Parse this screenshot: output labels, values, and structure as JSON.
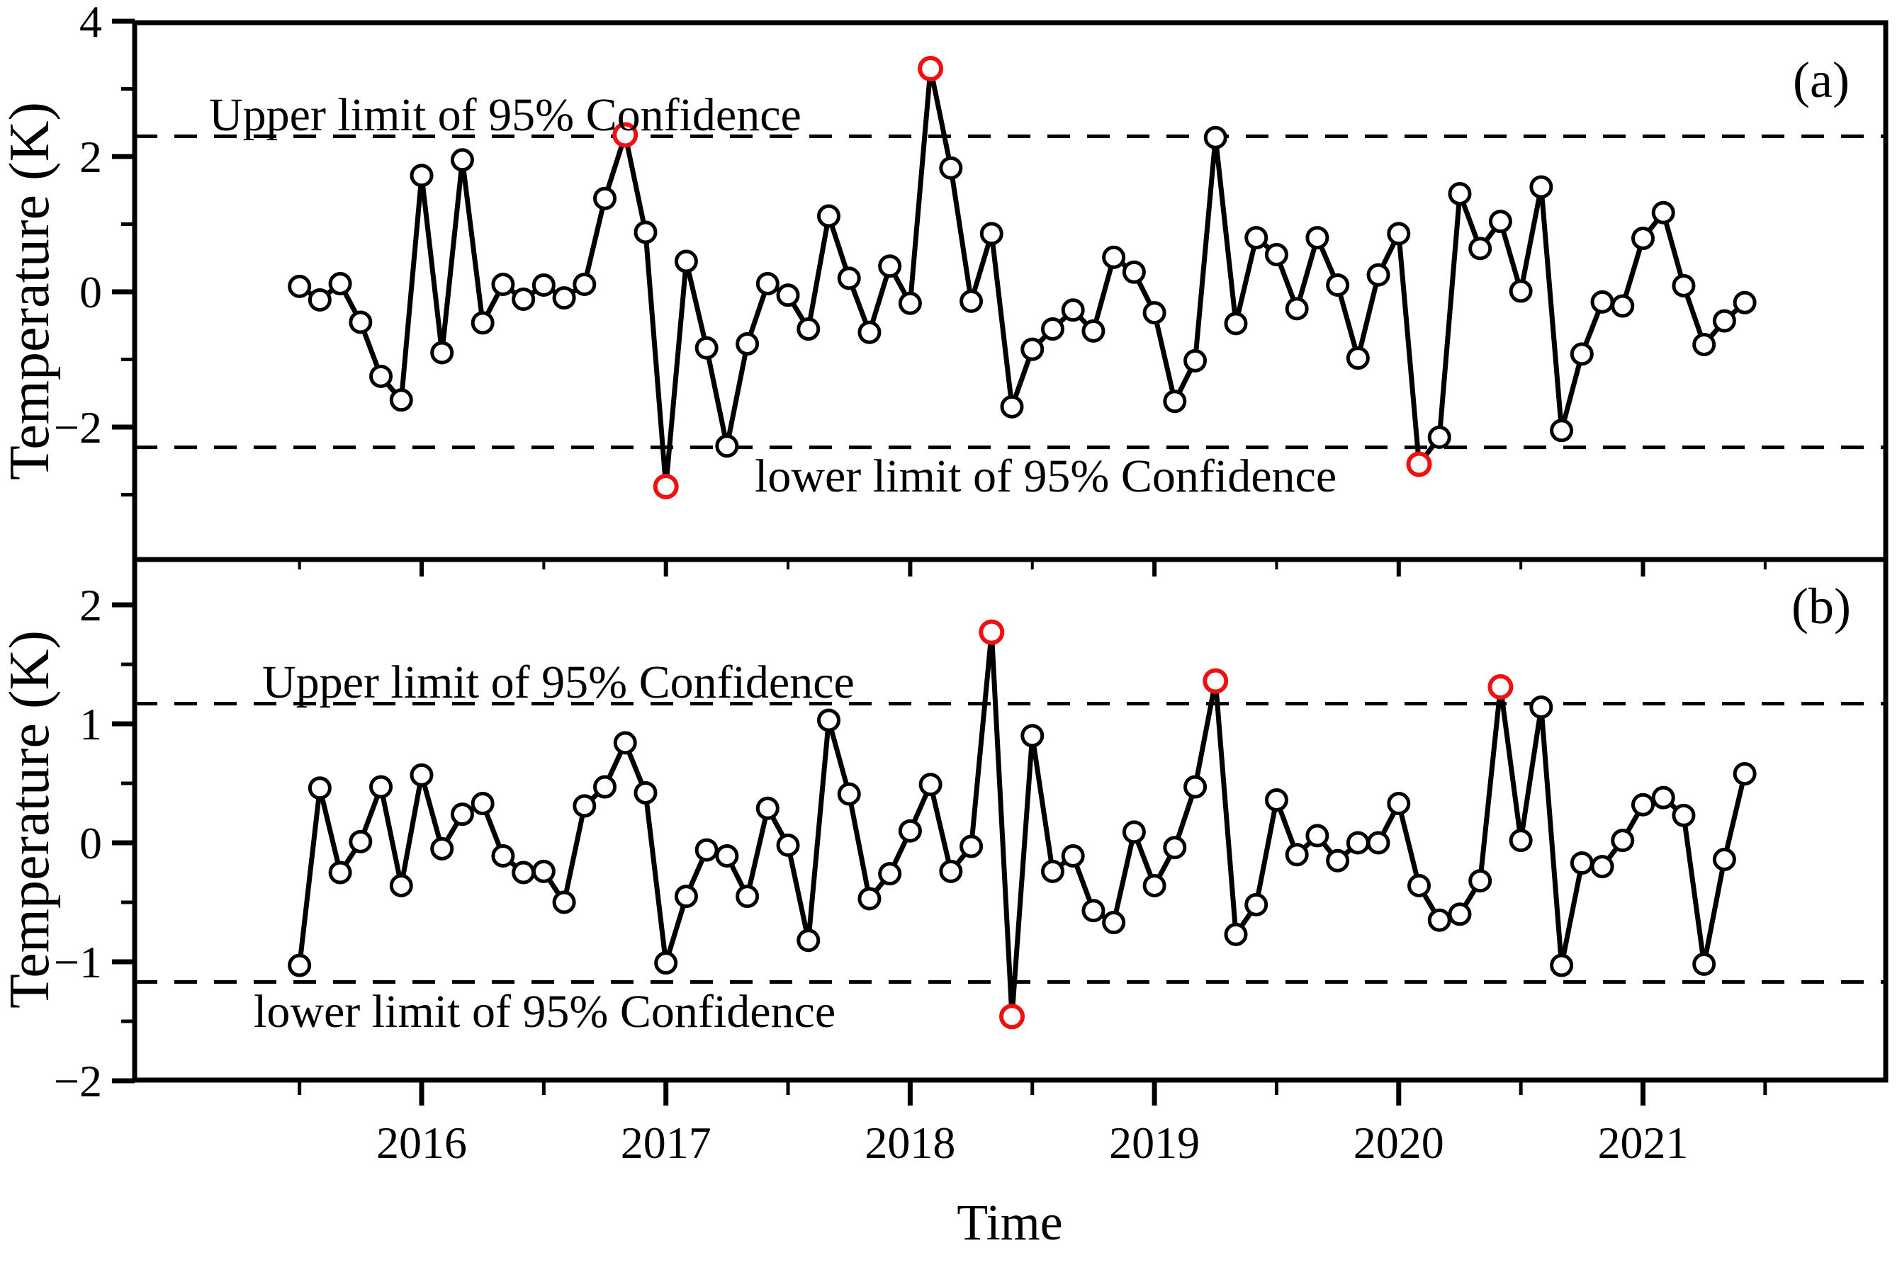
{
  "figure": {
    "x_axis_label": "Time",
    "panel_a_tag": "(a)",
    "panel_b_tag": "(b)",
    "background": "#ffffff",
    "line_color": "#000000",
    "outlier_color": "#ee1111"
  },
  "chart_data": [
    {
      "panel": "a",
      "type": "line",
      "title": "",
      "ylabel": "Temperature (K)",
      "xlabel": "Time",
      "x_start": "2015-07",
      "x_step_months": 1,
      "n_points": 72,
      "ylim": [
        -4.05,
        4.07
      ],
      "yticks_major": [
        4,
        2,
        0,
        -2
      ],
      "yticks_minor": [
        3,
        1,
        -1,
        -3
      ],
      "grid": false,
      "legend": "none",
      "upper_limit_value": 2.3,
      "lower_limit_value": -2.3,
      "upper_limit_label": "Upper limit of 95% Confidence",
      "lower_limit_label": "lower limit of 95% Confidence",
      "panel_label": "(a)",
      "marker": "open-circle",
      "values": [
        0.08,
        -0.12,
        0.12,
        -0.45,
        -1.25,
        -1.6,
        1.72,
        -0.9,
        1.95,
        -0.46,
        0.11,
        -0.11,
        0.1,
        -0.09,
        0.11,
        1.38,
        2.32,
        0.88,
        -2.88,
        0.45,
        -0.83,
        -2.28,
        -0.77,
        0.12,
        -0.05,
        -0.55,
        1.12,
        0.2,
        -0.6,
        0.38,
        -0.17,
        3.3,
        1.83,
        -0.14,
        0.86,
        -1.7,
        -0.85,
        -0.55,
        -0.27,
        -0.58,
        0.51,
        0.29,
        -0.31,
        -1.62,
        -1.02,
        2.28,
        -0.47,
        0.8,
        0.55,
        -0.25,
        0.8,
        0.1,
        -0.98,
        0.25,
        0.86,
        -2.55,
        -2.15,
        1.45,
        0.64,
        1.04,
        0.01,
        1.55,
        -2.05,
        -0.92,
        -0.15,
        -0.21,
        0.79,
        1.17,
        0.09,
        -0.78,
        -0.43,
        -0.16
      ],
      "outlier_indices": [
        16,
        18,
        31,
        55
      ]
    },
    {
      "panel": "b",
      "type": "line",
      "title": "",
      "ylabel": "Temperature (K)",
      "xlabel": "Time",
      "x_start": "2015-07",
      "x_step_months": 1,
      "n_points": 72,
      "ylim": [
        -1.99,
        2.38
      ],
      "yticks_major": [
        2,
        1,
        0,
        -1,
        -2
      ],
      "yticks_minor": [
        1.5,
        0.5,
        -0.5,
        -1.5
      ],
      "grid": false,
      "legend": "none",
      "upper_limit_value": 1.17,
      "lower_limit_value": -1.17,
      "upper_limit_label": "Upper limit of 95% Confidence",
      "lower_limit_label": "lower limit of 95% Confidence",
      "panel_label": "(b)",
      "marker": "open-circle",
      "values": [
        -1.03,
        0.46,
        -0.25,
        0.01,
        0.47,
        -0.36,
        0.57,
        -0.05,
        0.24,
        0.33,
        -0.11,
        -0.25,
        -0.24,
        -0.5,
        0.31,
        0.47,
        0.84,
        0.42,
        -1.01,
        -0.45,
        -0.06,
        -0.11,
        -0.45,
        0.29,
        -0.02,
        -0.82,
        1.03,
        0.41,
        -0.47,
        -0.26,
        0.1,
        0.49,
        -0.24,
        -0.03,
        1.77,
        -1.46,
        0.9,
        -0.24,
        -0.11,
        -0.57,
        -0.67,
        0.09,
        -0.36,
        -0.04,
        0.47,
        1.36,
        -0.77,
        -0.52,
        0.36,
        -0.1,
        0.06,
        -0.15,
        0.0,
        0.0,
        0.33,
        -0.36,
        -0.65,
        -0.6,
        -0.32,
        1.31,
        0.02,
        1.14,
        -1.03,
        -0.17,
        -0.2,
        0.02,
        0.32,
        0.38,
        0.23,
        -1.02,
        -0.14,
        0.58
      ],
      "outlier_indices": [
        34,
        35,
        45,
        59
      ]
    }
  ],
  "x_axis": {
    "label": "Time",
    "year_tick_labels": [
      "2016",
      "2017",
      "2018",
      "2019",
      "2020",
      "2021"
    ],
    "year_tick_values": [
      2016,
      2017,
      2018,
      2019,
      2020,
      2021
    ],
    "minor_tick_values": [
      2015.5,
      2016.5,
      2017.5,
      2018.5,
      2019.5,
      2020.5,
      2021.5
    ]
  }
}
